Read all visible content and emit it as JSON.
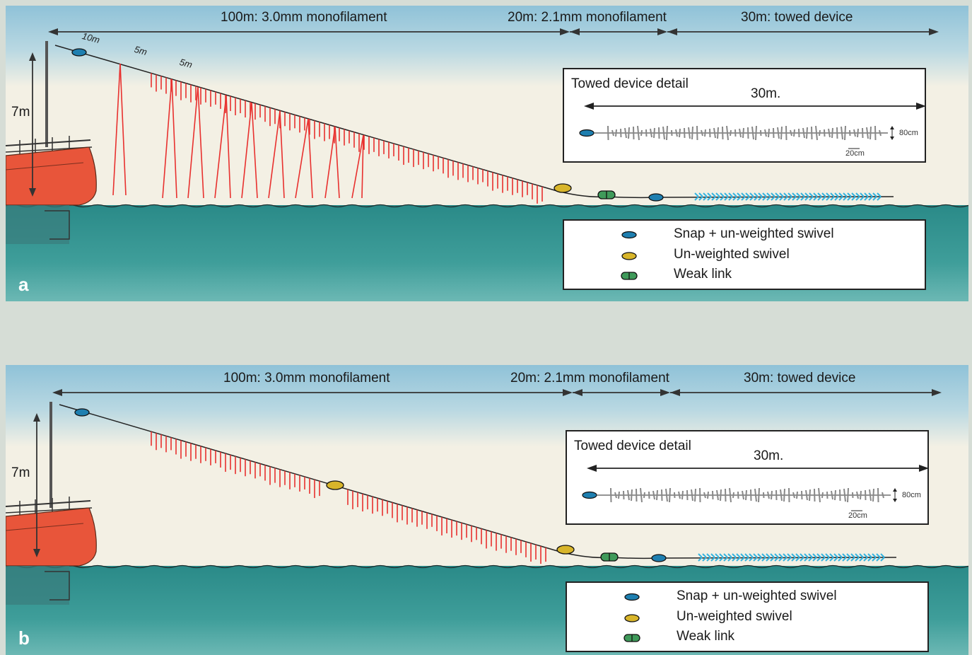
{
  "panels": [
    {
      "letter": "a",
      "seg_100": "100m: 3.0mm monofilament",
      "seg_20": "20m: 2.1mm monofilament",
      "seg_30": "30m: towed device",
      "height_label": "7m",
      "spacing_labels": [
        "10m",
        "5m",
        "5m"
      ],
      "detail": {
        "title": "Towed device detail",
        "length": "30m.",
        "height": "80cm",
        "spacing": "20cm"
      },
      "legend": [
        {
          "symbol": "blue-swivel-icon",
          "label": "Snap  + un-weighted swivel"
        },
        {
          "symbol": "yellow-swivel-icon",
          "label": "Un-weighted swivel"
        },
        {
          "symbol": "weak-link-icon",
          "label": "Weak link"
        }
      ]
    },
    {
      "letter": "b",
      "seg_100": "100m: 3.0mm monofilament",
      "seg_20": "20m: 2.1mm monofilament",
      "seg_30": "30m: towed device",
      "height_label": "7m",
      "detail": {
        "title": "Towed device detail",
        "length": "30m.",
        "height": "80cm",
        "spacing": "20cm"
      },
      "legend": [
        {
          "symbol": "blue-swivel-icon",
          "label": "Snap  + un-weighted swivel"
        },
        {
          "symbol": "yellow-swivel-icon",
          "label": "Un-weighted swivel"
        },
        {
          "symbol": "weak-link-icon",
          "label": "Weak link"
        }
      ]
    }
  ],
  "colors": {
    "sky": "#9ec9dc",
    "cream": "#f3f0e4",
    "sea": "#2d8f8c",
    "hull": "#e8553a",
    "streamer": "#e8302e",
    "towed": "#35b4e0",
    "swivel_blue": "#1e7fb0",
    "swivel_yellow": "#d8b52a",
    "weak_link": "#3f9a5a"
  }
}
